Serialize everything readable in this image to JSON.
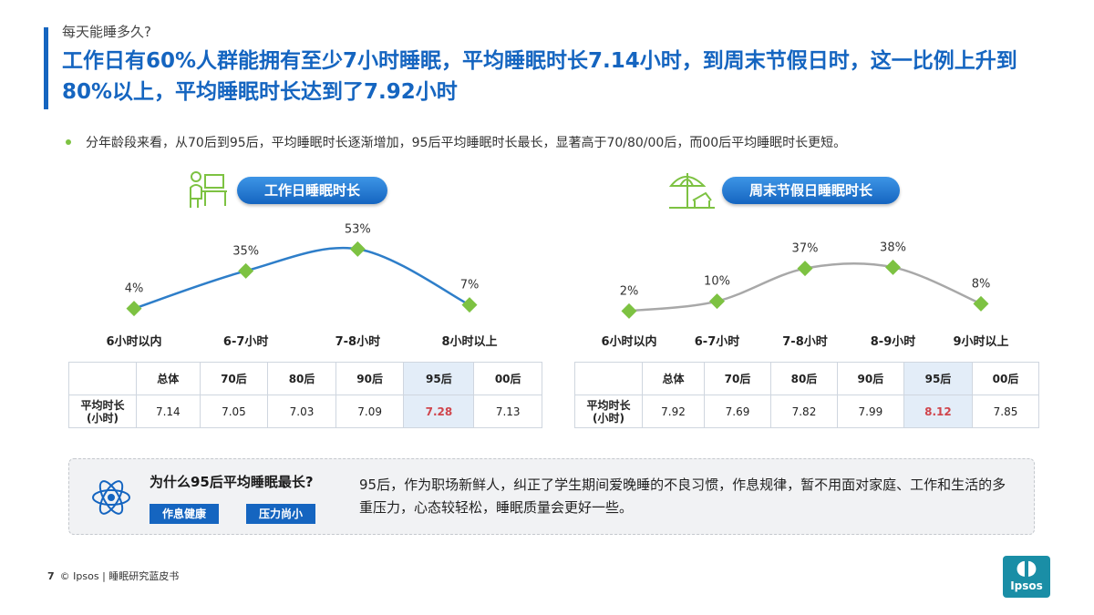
{
  "header": {
    "kicker": "每天能睡多久?",
    "headline": "工作日有60%人群能拥有至少7小时睡眠，平均睡眠时长7.14小时，到周末节假日时，这一比例上升到80%以上，平均睡眠时长达到了7.92小时"
  },
  "summary": "分年龄段来看，从70后到95后，平均睡眠时长逐渐增加，95后平均睡眠时长最长，显著高于70/80/00后，而00后平均睡眠时长更短。",
  "workday": {
    "title": "工作日睡眠时长",
    "table": {
      "columns": [
        "总体",
        "70后",
        "80后",
        "90后",
        "95后",
        "00后"
      ],
      "row_label": "平均时长(小时)",
      "values": [
        "7.14",
        "7.05",
        "7.03",
        "7.09",
        "7.28",
        "7.13"
      ],
      "highlight_index": 4
    }
  },
  "weekend": {
    "title": "周末节假日睡眠时长",
    "table": {
      "columns": [
        "总体",
        "70后",
        "80后",
        "90后",
        "95后",
        "00后"
      ],
      "row_label": "平均时长(小时)",
      "values": [
        "7.92",
        "7.69",
        "7.82",
        "7.99",
        "8.12",
        "7.85"
      ],
      "highlight_index": 4
    }
  },
  "chart_data": [
    {
      "type": "line",
      "title": "工作日睡眠时长",
      "categories": [
        "6小时以内",
        "6-7小时",
        "7-8小时",
        "8小时以上"
      ],
      "values": [
        4,
        35,
        53,
        7
      ],
      "value_labels": [
        "4%",
        "35%",
        "53%",
        "7%"
      ],
      "color": "#2e7ec9",
      "marker_color": "#7dc242",
      "grid": false
    },
    {
      "type": "line",
      "title": "周末节假日睡眠时长",
      "categories": [
        "6小时以内",
        "6-7小时",
        "7-8小时",
        "8-9小时",
        "9小时以上"
      ],
      "values": [
        2,
        10,
        37,
        38,
        8
      ],
      "value_labels": [
        "2%",
        "10%",
        "37%",
        "38%",
        "8%"
      ],
      "color": "#a8a8a8",
      "marker_color": "#7dc242",
      "grid": false
    }
  ],
  "callout": {
    "question": "为什么95后平均睡眠最长?",
    "tags": [
      "作息健康",
      "压力尚小"
    ],
    "answer": "95后，作为职场新鲜人，纠正了学生期间爱晚睡的不良习惯，作息规律，暂不用面对家庭、工作和生活的多重压力，心态较轻松，睡眠质量会更好一些。"
  },
  "footer": {
    "page": "7",
    "text": "© Ipsos | 睡眠研究蓝皮书"
  },
  "logo": {
    "text": "Ipsos"
  },
  "colors": {
    "brand_blue": "#1565c0",
    "marker_green": "#7dc242",
    "highlight_red": "#d0454c"
  }
}
